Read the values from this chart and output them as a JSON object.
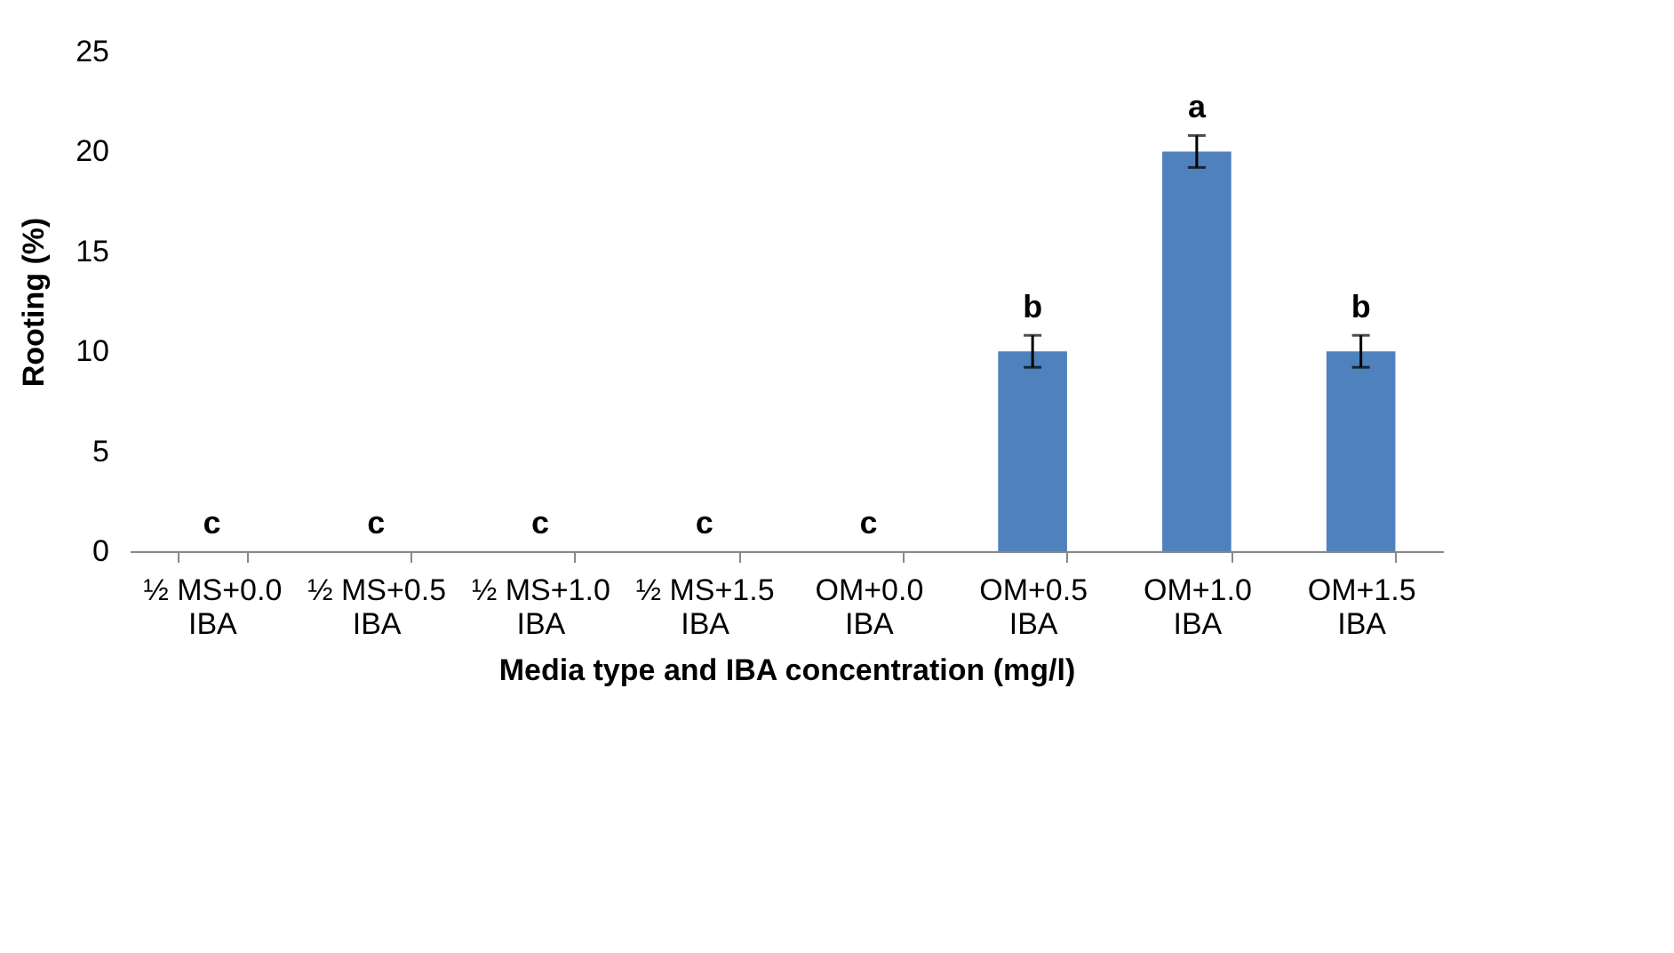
{
  "chart_data": {
    "type": "bar",
    "xlabel": "Media type and IBA concentration (mg/l)",
    "ylabel": "Rooting (%)",
    "categories": [
      "½ MS+0.0 IBA",
      "½ MS+0.5 IBA",
      "½ MS+1.0 IBA",
      "½ MS+1.5 IBA",
      "OM+0.0 IBA",
      "OM+0.5 IBA",
      "OM+1.0 IBA",
      "OM+1.5 IBA"
    ],
    "values": [
      0,
      0,
      0,
      0,
      0,
      10,
      20,
      10
    ],
    "errors": [
      null,
      null,
      null,
      null,
      null,
      0.8,
      0.8,
      0.8
    ],
    "color": "#4f81bd",
    "ylim": [
      0,
      25
    ],
    "yticks": [
      0,
      5,
      10,
      15,
      20,
      25
    ],
    "annotations": [
      {
        "text": "c",
        "x": "½ MS+0.0 IBA",
        "y": 0
      },
      {
        "text": "c",
        "x": "½ MS+0.5 IBA",
        "y": 0
      },
      {
        "text": "c",
        "x": "½ MS+1.0 IBA",
        "y": 0
      },
      {
        "text": "c",
        "x": "½ MS+1.5 IBA",
        "y": 0
      },
      {
        "text": "c",
        "x": "OM+0.0 IBA",
        "y": 0
      },
      {
        "text": "b",
        "x": "OM+0.5 IBA",
        "y": 10.8
      },
      {
        "text": "a",
        "x": "OM+1.0 IBA",
        "y": 20.8
      },
      {
        "text": "b",
        "x": "OM+1.5 IBA",
        "y": 10.8
      }
    ]
  }
}
